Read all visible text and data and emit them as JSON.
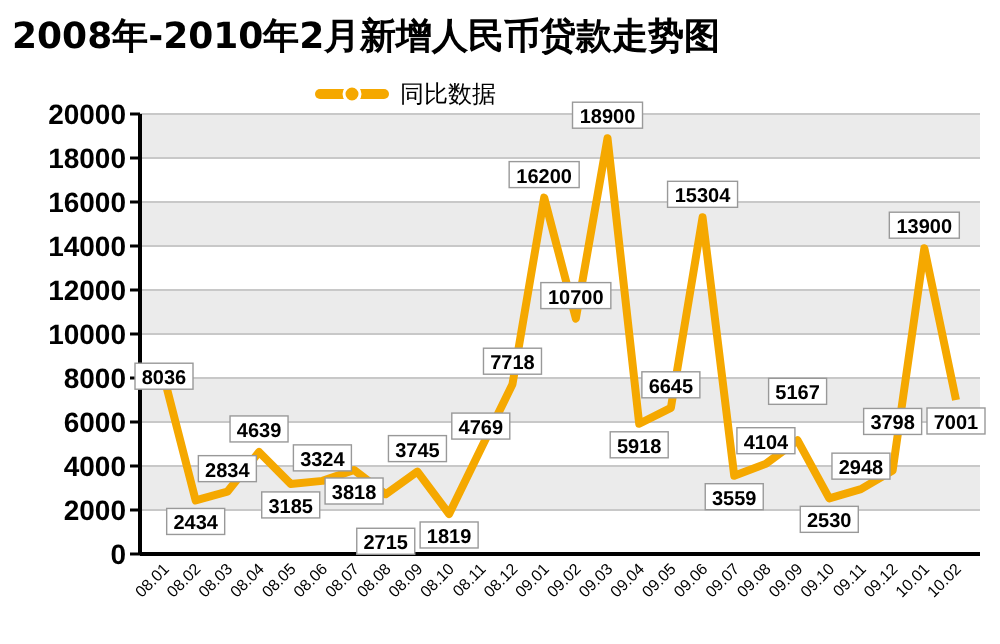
{
  "chart_data": {
    "type": "line",
    "title": "2008年-2010年2月新增人民币贷款走势图",
    "categories": [
      "08.01",
      "08.02",
      "08.03",
      "08.04",
      "08.05",
      "08.06",
      "08.07",
      "08.08",
      "08.09",
      "08.10",
      "08.11",
      "08.12",
      "09.01",
      "09.02",
      "09.03",
      "09.04",
      "09.05",
      "09.06",
      "09.07",
      "09.08",
      "09.09",
      "09.10",
      "09.11",
      "09.12",
      "10.01",
      "10.02"
    ],
    "series": [
      {
        "name": "同比数据",
        "color": "#f5a800",
        "values": [
          8036,
          2434,
          2834,
          4639,
          3185,
          3324,
          3818,
          2715,
          3745,
          1819,
          4769,
          7718,
          16200,
          10700,
          18900,
          5918,
          6645,
          15304,
          3559,
          4104,
          5167,
          2530,
          2948,
          3798,
          13900,
          7001
        ]
      }
    ],
    "ylim": [
      0,
      20000
    ],
    "yticks": [
      0,
      2000,
      4000,
      6000,
      8000,
      10000,
      12000,
      14000,
      16000,
      18000,
      20000
    ],
    "grid": "y",
    "legend": "top",
    "data_labels": true,
    "marker": "none"
  }
}
